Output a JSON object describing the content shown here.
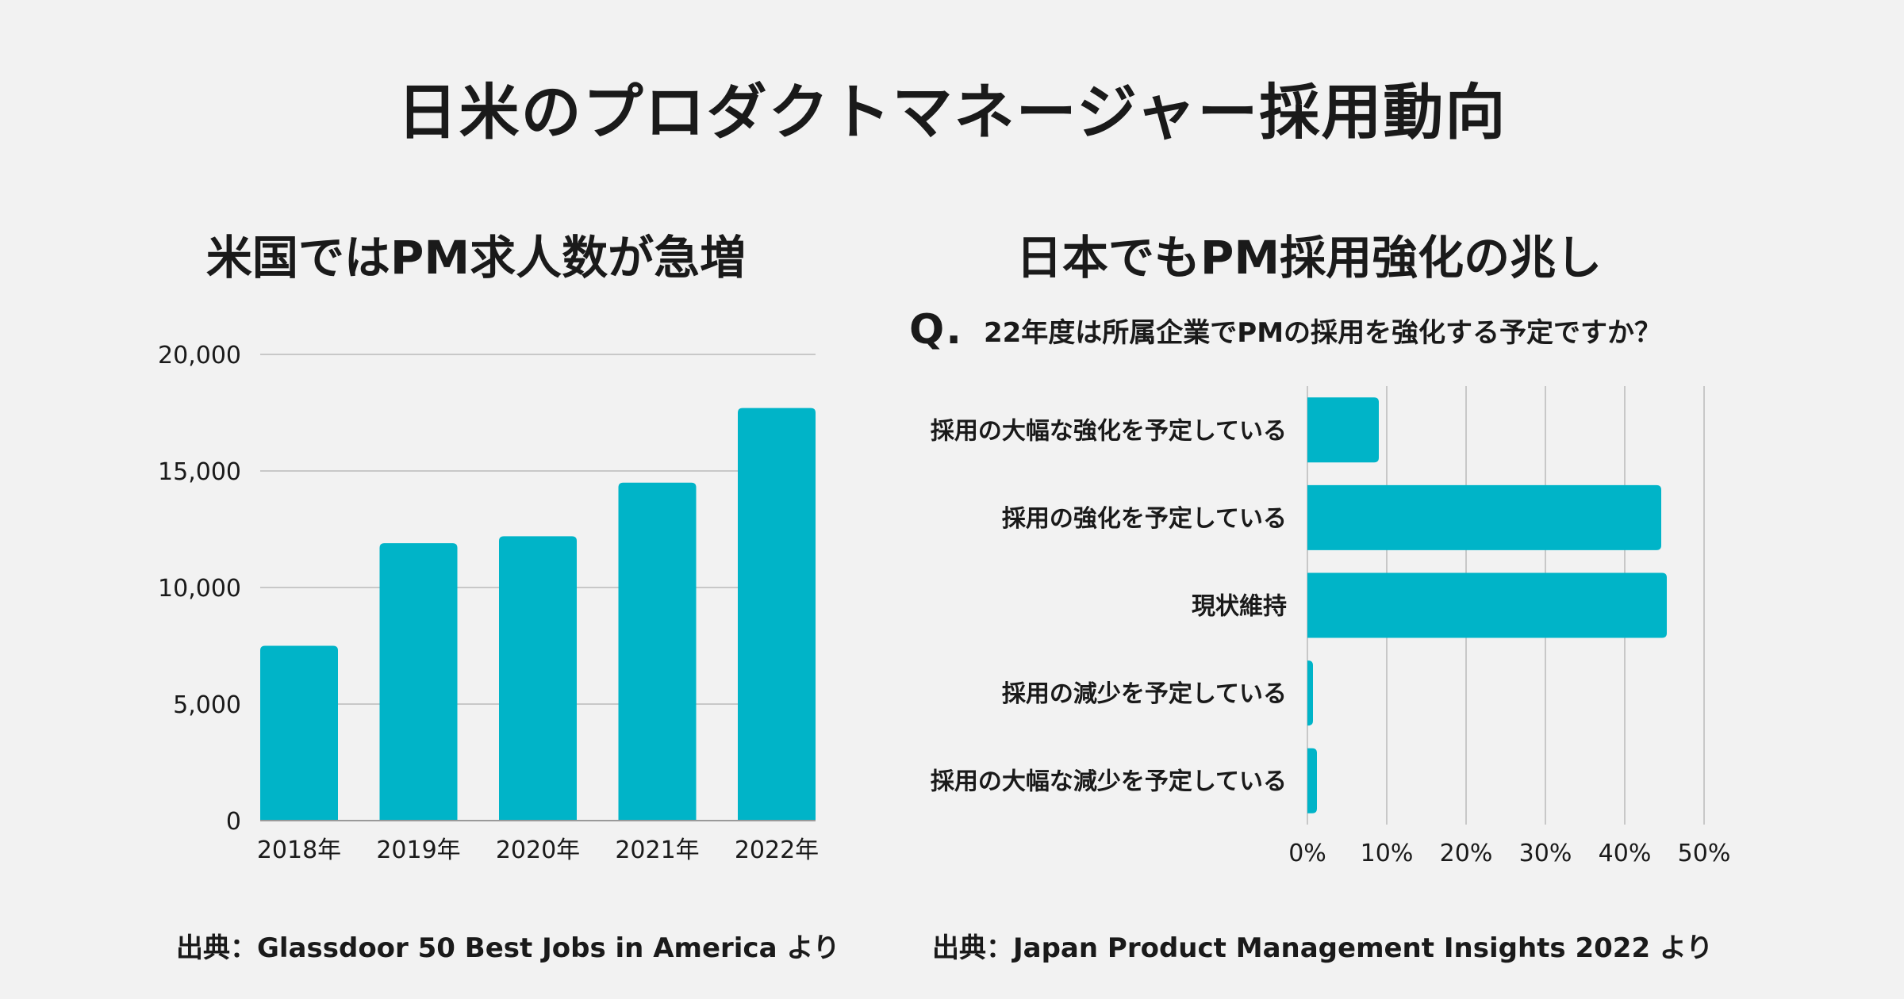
{
  "title": "日米のプロダクトマネージャー採用動向",
  "colors": {
    "background": "#f2f2f2",
    "bar": "#00b4c8",
    "grid": "#c8c8c8",
    "text": "#1a1a1a"
  },
  "left_panel": {
    "heading": "米国ではPM求人数が急増",
    "source": "出典：Glassdoor 50 Best Jobs in America より"
  },
  "right_panel": {
    "heading": "日本でもPM採用強化の兆し",
    "question_mark": "Q.",
    "question": "22年度は所属企業でPMの採用を強化する予定ですか？",
    "source": "出典：Japan Product Management Insights 2022 より"
  },
  "chart_data": [
    {
      "type": "bar",
      "orientation": "vertical",
      "title": "米国ではPM求人数が急増",
      "categories": [
        "2018年",
        "2019年",
        "2020年",
        "2021年",
        "2022年"
      ],
      "values": [
        7500,
        11900,
        12200,
        14500,
        17700
      ],
      "ylim": [
        0,
        20000
      ],
      "yticks": [
        0,
        5000,
        10000,
        15000,
        20000
      ],
      "ytick_labels": [
        "0",
        "5,000",
        "10,000",
        "15,000",
        "20,000"
      ],
      "grid": "horizontal",
      "xlabel": "",
      "ylabel": ""
    },
    {
      "type": "bar",
      "orientation": "horizontal",
      "title": "日本でもPM採用強化の兆し",
      "categories": [
        "採用の大幅な強化を予定している",
        "採用の強化を予定している",
        "現状維持",
        "採用の減少を予定している",
        "採用の大幅な減少を予定している"
      ],
      "values": [
        9,
        44.6,
        45.3,
        0.7,
        1.2
      ],
      "xlim": [
        0,
        50
      ],
      "xticks": [
        0,
        10,
        20,
        30,
        40,
        50
      ],
      "xtick_labels": [
        "0%",
        "10%",
        "20%",
        "30%",
        "40%",
        "50%"
      ],
      "grid": "vertical",
      "xlabel": "",
      "ylabel": ""
    }
  ]
}
